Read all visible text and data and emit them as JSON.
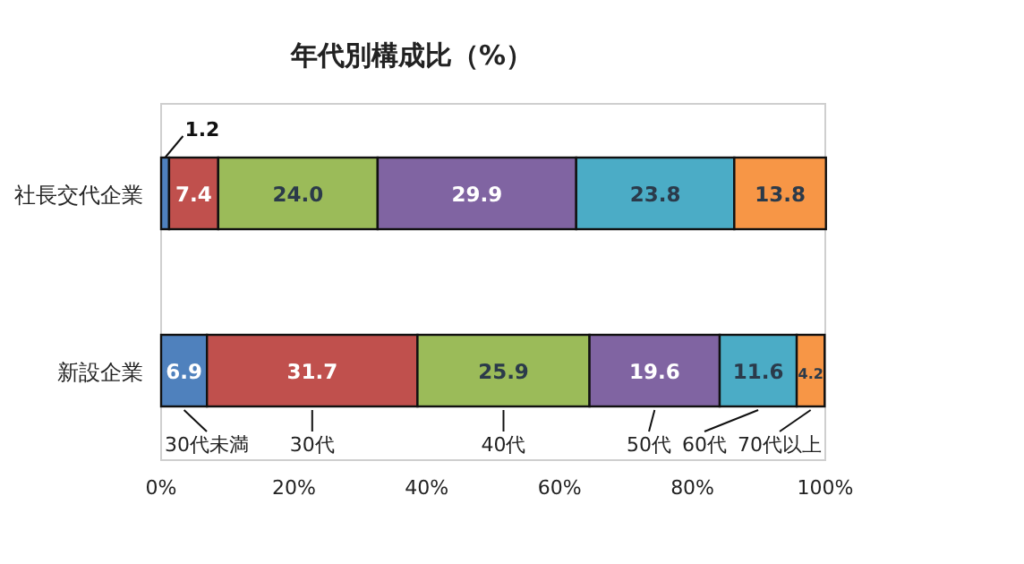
{
  "chart_data": {
    "type": "bar",
    "orientation": "horizontal",
    "stacked": true,
    "title": "年代別構成比（%）",
    "categories": [
      "社長交代企業",
      "新設企業"
    ],
    "series": [
      {
        "name": "30代未満",
        "color": "#4f81bd",
        "values": [
          1.2,
          6.9
        ],
        "value_labels": [
          "1.2",
          "6.9"
        ]
      },
      {
        "name": "30代",
        "color": "#c0504d",
        "values": [
          7.4,
          31.7
        ],
        "value_labels": [
          "7.4",
          "31.7"
        ]
      },
      {
        "name": "40代",
        "color": "#9bbb59",
        "values": [
          24.0,
          25.9
        ],
        "value_labels": [
          "24.0",
          "25.9"
        ]
      },
      {
        "name": "50代",
        "color": "#8064a2",
        "values": [
          29.9,
          19.6
        ],
        "value_labels": [
          "29.9",
          "19.6"
        ]
      },
      {
        "name": "60代",
        "color": "#4bacc6",
        "values": [
          23.8,
          11.6
        ],
        "value_labels": [
          "23.8",
          "11.6"
        ]
      },
      {
        "name": "70代以上",
        "color": "#f79646",
        "values": [
          13.8,
          4.2
        ],
        "value_labels": [
          "13.8",
          "4.2"
        ]
      }
    ],
    "xlim": [
      0,
      100
    ],
    "xticks": [
      {
        "value": 0,
        "label": "0%"
      },
      {
        "value": 20,
        "label": "20%"
      },
      {
        "value": 40,
        "label": "40%"
      },
      {
        "value": 60,
        "label": "60%"
      },
      {
        "value": 80,
        "label": "80%"
      },
      {
        "value": 100,
        "label": "100%"
      }
    ],
    "legend": "bottom",
    "grid": false
  }
}
